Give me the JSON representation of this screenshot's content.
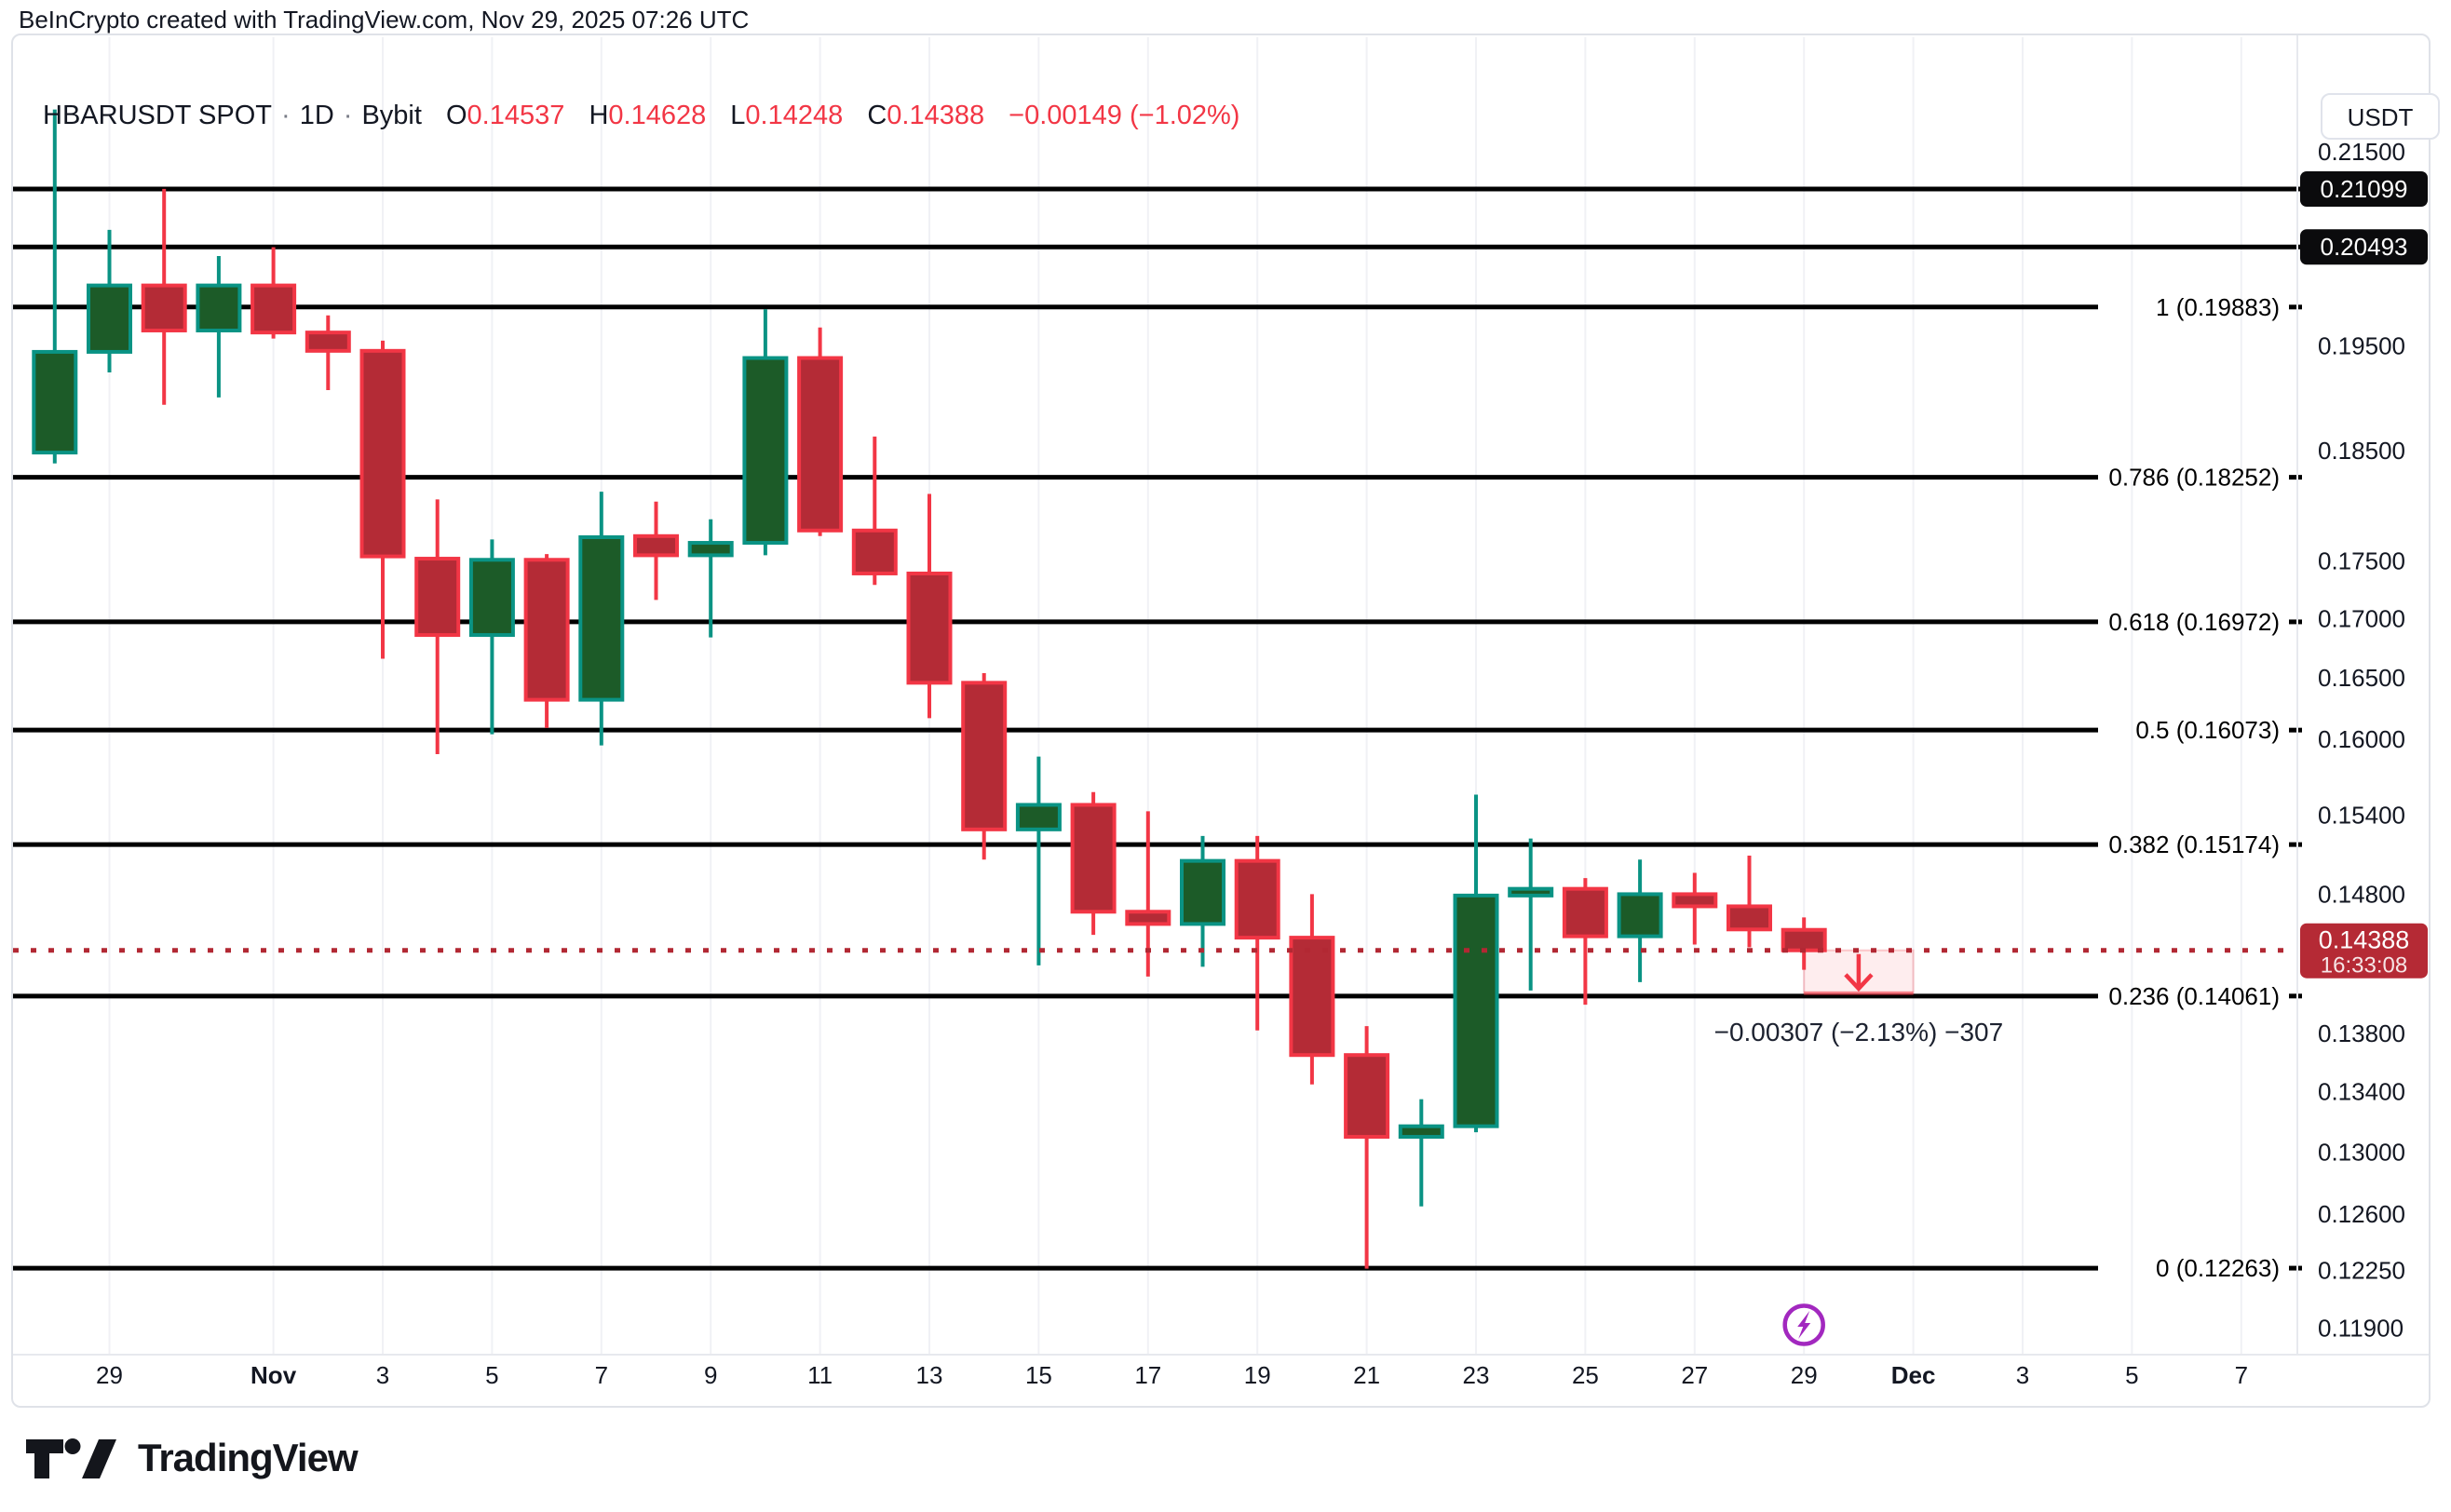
{
  "attribution": "BeInCrypto created with TradingView.com, Nov 29, 2025 07:26 UTC",
  "header": {
    "symbol": "HBARUSDT SPOT",
    "separator": "·",
    "timeframe": "1D",
    "exchange": "Bybit",
    "o_label": "O",
    "o_value": "0.14537",
    "h_label": "H",
    "h_value": "0.14628",
    "l_label": "L",
    "l_value": "0.14248",
    "c_label": "C",
    "c_value": "0.14388",
    "change": "−0.00149 (−1.02%)"
  },
  "quote_currency_button": "USDT",
  "logo_text": "TradingView",
  "colors": {
    "up_fill": "#1C5B28",
    "up_border": "#0A9384",
    "down_fill": "#B42B36",
    "down_border": "#F23645",
    "fib_line": "#000000",
    "axis_text": "#131722",
    "dotted_line": "#B22833",
    "current_label_bg": "#B52A35",
    "black_label_bg": "#0B0B0D",
    "grid": "#F0F1F5",
    "panel_border": "#E7E9EE",
    "purple_icon": "#A228BF",
    "projection_fill": "rgba(242,54,69,0.09)",
    "projection_edge": "rgba(242,54,69,0.55)",
    "annotation_text": "#1D2230"
  },
  "chart_data": {
    "type": "candlestick",
    "title": "HBARUSDT SPOT · 1D · Bybit",
    "y_scale": "log",
    "candles": [
      {
        "date": "Oct 28",
        "open": 0.1848,
        "high": 0.2196,
        "low": 0.1838,
        "close": 0.1944
      },
      {
        "date": "Oct 29",
        "open": 0.1944,
        "high": 0.2067,
        "low": 0.1924,
        "close": 0.201
      },
      {
        "date": "Oct 30",
        "open": 0.201,
        "high": 0.211,
        "low": 0.1893,
        "close": 0.1965
      },
      {
        "date": "Oct 31",
        "open": 0.1965,
        "high": 0.204,
        "low": 0.19,
        "close": 0.201
      },
      {
        "date": "Nov 1",
        "open": 0.201,
        "high": 0.2049,
        "low": 0.1957,
        "close": 0.1963
      },
      {
        "date": "Nov 2",
        "open": 0.1963,
        "high": 0.198,
        "low": 0.1907,
        "close": 0.1945
      },
      {
        "date": "Nov 3",
        "open": 0.1945,
        "high": 0.1955,
        "low": 0.1666,
        "close": 0.1754
      },
      {
        "date": "Nov 4",
        "open": 0.1752,
        "high": 0.1805,
        "low": 0.1588,
        "close": 0.1686
      },
      {
        "date": "Nov 5",
        "open": 0.1686,
        "high": 0.1769,
        "low": 0.1604,
        "close": 0.1751
      },
      {
        "date": "Nov 6",
        "open": 0.1751,
        "high": 0.1756,
        "low": 0.1609,
        "close": 0.1632
      },
      {
        "date": "Nov 7",
        "open": 0.1632,
        "high": 0.1812,
        "low": 0.1595,
        "close": 0.1771
      },
      {
        "date": "Nov 8",
        "open": 0.1772,
        "high": 0.1803,
        "low": 0.1716,
        "close": 0.1755
      },
      {
        "date": "Nov 9",
        "open": 0.1755,
        "high": 0.1787,
        "low": 0.1684,
        "close": 0.1766
      },
      {
        "date": "Nov 10",
        "open": 0.1766,
        "high": 0.1986,
        "low": 0.1755,
        "close": 0.1938
      },
      {
        "date": "Nov 11",
        "open": 0.1938,
        "high": 0.1968,
        "low": 0.1772,
        "close": 0.1777
      },
      {
        "date": "Nov 12",
        "open": 0.1777,
        "high": 0.1863,
        "low": 0.1729,
        "close": 0.1739
      },
      {
        "date": "Nov 13",
        "open": 0.1739,
        "high": 0.181,
        "low": 0.1617,
        "close": 0.1646
      },
      {
        "date": "Nov 14",
        "open": 0.1646,
        "high": 0.1654,
        "low": 0.1506,
        "close": 0.1529
      },
      {
        "date": "Nov 15",
        "open": 0.1529,
        "high": 0.1586,
        "low": 0.1428,
        "close": 0.1548
      },
      {
        "date": "Nov 16",
        "open": 0.1548,
        "high": 0.1558,
        "low": 0.145,
        "close": 0.1467
      },
      {
        "date": "Nov 17",
        "open": 0.1467,
        "high": 0.1543,
        "low": 0.142,
        "close": 0.1458
      },
      {
        "date": "Nov 18",
        "open": 0.1458,
        "high": 0.1524,
        "low": 0.1427,
        "close": 0.1505
      },
      {
        "date": "Nov 19",
        "open": 0.1505,
        "high": 0.1524,
        "low": 0.1382,
        "close": 0.1448
      },
      {
        "date": "Nov 20",
        "open": 0.1448,
        "high": 0.148,
        "low": 0.1345,
        "close": 0.1365
      },
      {
        "date": "Nov 21",
        "open": 0.1365,
        "high": 0.1385,
        "low": 0.1226,
        "close": 0.131
      },
      {
        "date": "Nov 22",
        "open": 0.131,
        "high": 0.1335,
        "low": 0.1265,
        "close": 0.1317
      },
      {
        "date": "Nov 23",
        "open": 0.1317,
        "high": 0.1556,
        "low": 0.1313,
        "close": 0.1479
      },
      {
        "date": "Nov 24",
        "open": 0.1479,
        "high": 0.1522,
        "low": 0.141,
        "close": 0.1484
      },
      {
        "date": "Nov 25",
        "open": 0.1484,
        "high": 0.1492,
        "low": 0.14,
        "close": 0.1449
      },
      {
        "date": "Nov 26",
        "open": 0.1449,
        "high": 0.1506,
        "low": 0.1416,
        "close": 0.148
      },
      {
        "date": "Nov 27",
        "open": 0.148,
        "high": 0.1496,
        "low": 0.1443,
        "close": 0.1471
      },
      {
        "date": "Nov 28",
        "open": 0.1471,
        "high": 0.1509,
        "low": 0.1441,
        "close": 0.1454
      },
      {
        "date": "Nov 29",
        "open": 0.14537,
        "high": 0.14628,
        "low": 0.14248,
        "close": 0.14388
      }
    ],
    "fib_levels": [
      {
        "ratio": "1",
        "price": 0.19883,
        "label": "1 (0.19883)"
      },
      {
        "ratio": "0.786",
        "price": 0.18252,
        "label": "0.786 (0.18252)"
      },
      {
        "ratio": "0.618",
        "price": 0.16972,
        "label": "0.618 (0.16972)"
      },
      {
        "ratio": "0.5",
        "price": 0.16073,
        "label": "0.5 (0.16073)"
      },
      {
        "ratio": "0.382",
        "price": 0.15174,
        "label": "0.382 (0.15174)"
      },
      {
        "ratio": "0.236",
        "price": 0.14061,
        "label": "0.236 (0.14061)"
      },
      {
        "ratio": "0",
        "price": 0.12263,
        "label": "0 (0.12263)"
      }
    ],
    "horizontal_levels": [
      {
        "price": 0.21099,
        "label": "0.21099"
      },
      {
        "price": 0.20493,
        "label": "0.20493"
      }
    ],
    "current_price": {
      "value": 0.14388,
      "label": "0.14388",
      "countdown": "16:33:08"
    },
    "y_axis_ticks": [
      "0.21500",
      "0.19500",
      "0.18500",
      "0.17500",
      "0.17000",
      "0.16500",
      "0.16000",
      "0.15400",
      "0.14800",
      "0.13800",
      "0.13400",
      "0.13000",
      "0.12600",
      "0.12250",
      "0.11900"
    ],
    "x_axis_labels": [
      {
        "label": "29",
        "day": 1,
        "bold": false
      },
      {
        "label": "Nov",
        "day": 4,
        "bold": true
      },
      {
        "label": "3",
        "day": 6,
        "bold": false
      },
      {
        "label": "5",
        "day": 8,
        "bold": false
      },
      {
        "label": "7",
        "day": 10,
        "bold": false
      },
      {
        "label": "9",
        "day": 12,
        "bold": false
      },
      {
        "label": "11",
        "day": 14,
        "bold": false
      },
      {
        "label": "13",
        "day": 16,
        "bold": false
      },
      {
        "label": "15",
        "day": 18,
        "bold": false
      },
      {
        "label": "17",
        "day": 20,
        "bold": false
      },
      {
        "label": "19",
        "day": 22,
        "bold": false
      },
      {
        "label": "21",
        "day": 24,
        "bold": false
      },
      {
        "label": "23",
        "day": 26,
        "bold": false
      },
      {
        "label": "25",
        "day": 28,
        "bold": false
      },
      {
        "label": "27",
        "day": 30,
        "bold": false
      },
      {
        "label": "29",
        "day": 32,
        "bold": false
      },
      {
        "label": "Dec",
        "day": 34,
        "bold": true
      },
      {
        "label": "3",
        "day": 36,
        "bold": false
      },
      {
        "label": "5",
        "day": 38,
        "bold": false
      },
      {
        "label": "7",
        "day": 40,
        "bold": false
      }
    ],
    "projection": {
      "from_day": 32,
      "to_day": 34,
      "from_price": 0.14388,
      "to_price": 0.14081,
      "annotation": "−0.00307 (−2.13%) −307"
    },
    "event_icon": {
      "name": "lightning-bolt",
      "day": 32
    }
  }
}
